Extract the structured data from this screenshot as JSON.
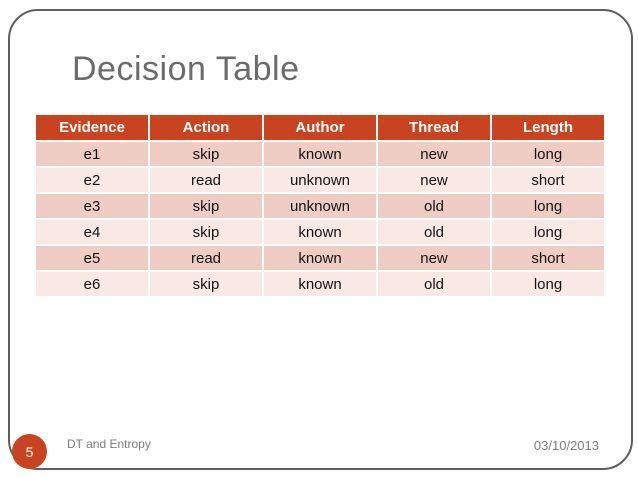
{
  "slide": {
    "title": "Decision Table",
    "page_number": "5",
    "footer": "DT and Entropy",
    "date": "03/10/2013"
  },
  "table": {
    "headers": [
      "Evidence",
      "Action",
      "Author",
      "Thread",
      "Length"
    ],
    "rows": [
      [
        "e1",
        "skip",
        "known",
        "new",
        "long"
      ],
      [
        "e2",
        "read",
        "unknown",
        "new",
        "short"
      ],
      [
        "e3",
        "skip",
        "unknown",
        "old",
        "long"
      ],
      [
        "e4",
        "skip",
        "known",
        "old",
        "long"
      ],
      [
        "e5",
        "read",
        "known",
        "new",
        "short"
      ],
      [
        "e6",
        "skip",
        "known",
        "old",
        "long"
      ]
    ]
  },
  "colors": {
    "accent": "#c8431f",
    "table_header_bg": "#c8431f",
    "row_odd_bg": "#efcdc5",
    "row_even_bg": "#f9e8e4",
    "title_color": "#6b6b6b",
    "footer_color": "#7d7d7d",
    "frame_border": "#5f5f5f"
  }
}
